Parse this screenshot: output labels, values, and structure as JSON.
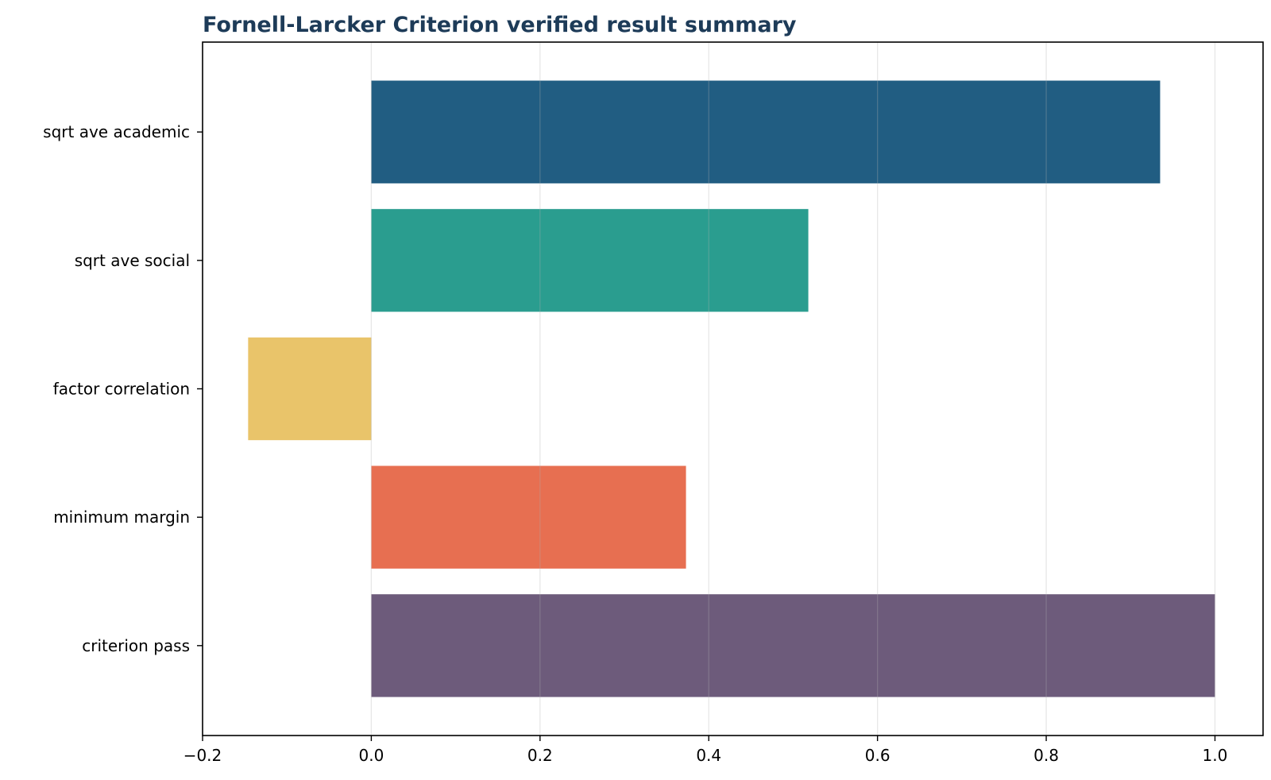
{
  "chart_data": {
    "type": "bar",
    "orientation": "horizontal",
    "title": "Fornell-Larcker Criterion verified result summary",
    "xlabel": "",
    "ylabel": "",
    "categories": [
      "sqrt ave academic",
      "sqrt ave social",
      "factor correlation",
      "minimum margin",
      "criterion pass"
    ],
    "values": [
      0.935,
      0.518,
      -0.146,
      0.373,
      1.0
    ],
    "colors": [
      "#215d82",
      "#2a9d8f",
      "#e9c46a",
      "#e76f51",
      "#6d5b7b"
    ],
    "xlim": [
      -0.2,
      1.057
    ],
    "xticks": [
      -0.2,
      0.0,
      0.2,
      0.4,
      0.6,
      0.8,
      1.0
    ],
    "xtick_labels": [
      "−0.2",
      "0.0",
      "0.2",
      "0.4",
      "0.6",
      "0.8",
      "1.0"
    ],
    "grid": {
      "x": true,
      "y": false
    },
    "legend": "none",
    "title_color": "#1d3b58"
  }
}
